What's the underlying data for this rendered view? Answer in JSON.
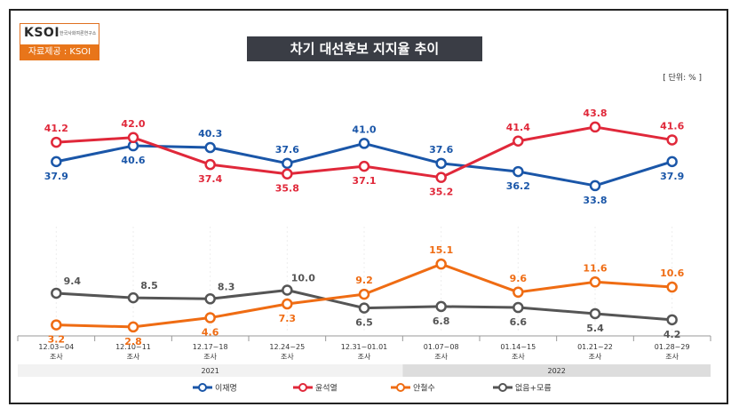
{
  "logo": {
    "mark": "KSOI",
    "sub": "한국사회여론연구소",
    "source": "자료제공 : KSOI"
  },
  "title": "차기 대선후보 지지율 추이",
  "unit": "[ 단위: % ]",
  "colors": {
    "lee": "#1a56a8",
    "yoon": "#e0283a",
    "ahn": "#ef6c13",
    "none": "#555555"
  },
  "chart_data": {
    "type": "line",
    "categories": [
      "12.03~04",
      "12.10~11",
      "12.17~18",
      "12.24~25",
      "12.31~01.01",
      "01.07~08",
      "01.14~15",
      "01.21~22",
      "01.28~29"
    ],
    "category_sublabel": "조사",
    "year_groups": [
      {
        "label": "2021",
        "span": [
          0,
          4
        ]
      },
      {
        "label": "2022",
        "span": [
          5,
          8
        ]
      }
    ],
    "series": [
      {
        "key": "lee",
        "name": "이재명",
        "color": "#1a56a8",
        "values": [
          37.9,
          40.6,
          40.3,
          37.6,
          41.0,
          37.6,
          36.2,
          33.8,
          37.9
        ]
      },
      {
        "key": "yoon",
        "name": "윤석열",
        "color": "#e0283a",
        "values": [
          41.2,
          42.0,
          37.4,
          35.8,
          37.1,
          35.2,
          41.4,
          43.8,
          41.6
        ]
      },
      {
        "key": "ahn",
        "name": "안철수",
        "color": "#ef6c13",
        "values": [
          3.2,
          2.8,
          4.6,
          7.3,
          9.2,
          15.1,
          9.6,
          11.6,
          10.6
        ]
      },
      {
        "key": "none",
        "name": "없음+모름",
        "color": "#555555",
        "values": [
          9.4,
          8.5,
          8.3,
          10.0,
          6.5,
          6.8,
          6.6,
          5.4,
          4.2
        ]
      }
    ]
  }
}
